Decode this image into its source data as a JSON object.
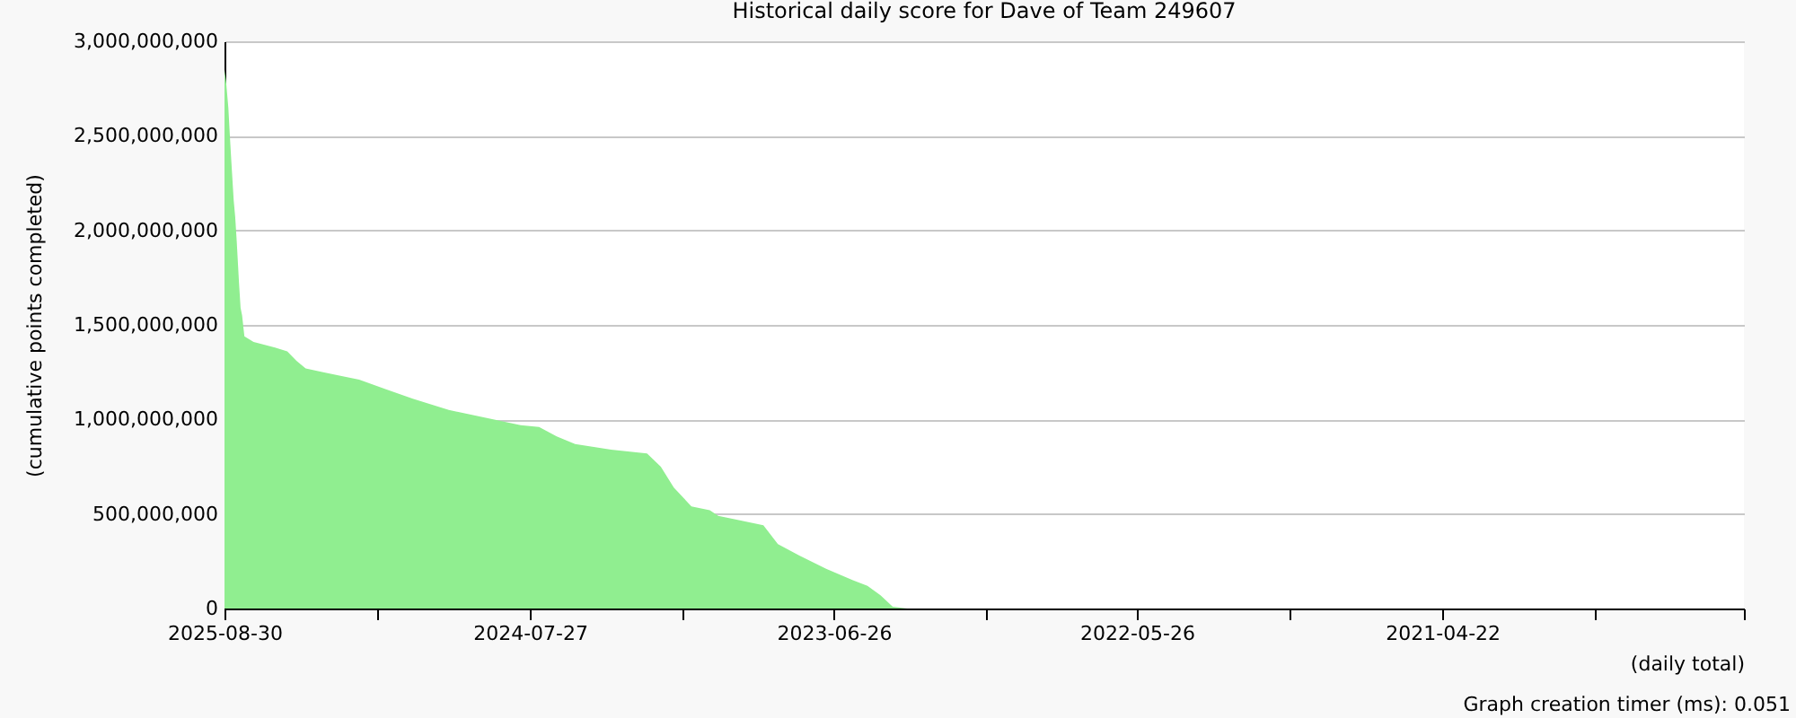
{
  "chart_data": {
    "type": "area",
    "title": "Historical daily score for Dave of Team 249607",
    "ylabel": "(cumulative points completed)",
    "xlabel": "(daily total)",
    "annotations": [
      "Graph creation timer (ms): 0.051"
    ],
    "x": [
      "2025-08-30",
      "2025-08-28",
      "2025-08-25",
      "2025-08-23",
      "2025-08-21",
      "2025-08-18",
      "2025-08-16",
      "2025-08-14",
      "2025-08-11",
      "2025-08-09",
      "2025-08-07",
      "2025-08-04",
      "2025-07-23",
      "2025-07-14",
      "2025-06-25",
      "2025-06-09",
      "2025-05-28",
      "2025-05-16",
      "2025-04-23",
      "2025-03-30",
      "2025-03-07",
      "2025-01-31",
      "2024-12-27",
      "2024-11-10",
      "2024-09-24",
      "2024-08-08",
      "2024-07-15",
      "2024-06-22",
      "2024-05-29",
      "2024-04-12",
      "2024-02-25",
      "2024-02-07",
      "2024-01-21",
      "2023-12-29",
      "2023-12-05",
      "2023-11-24",
      "2023-10-31",
      "2023-09-26",
      "2023-09-07",
      "2023-08-10",
      "2023-07-06",
      "2023-06-01",
      "2023-05-13",
      "2023-04-26",
      "2023-04-10",
      "2023-03-22",
      "2023-03-17",
      "2020-05-10"
    ],
    "series": [
      {
        "color": "#90ee90",
        "values": [
          2850000000,
          2790000000,
          2650000000,
          2500000000,
          2360000000,
          2160000000,
          2070000000,
          1940000000,
          1720000000,
          1590000000,
          1550000000,
          1440000000,
          1410000000,
          1400000000,
          1380000000,
          1360000000,
          1310000000,
          1270000000,
          1250000000,
          1230000000,
          1210000000,
          1160000000,
          1110000000,
          1050000000,
          1010000000,
          970000000,
          960000000,
          910000000,
          870000000,
          840000000,
          820000000,
          750000000,
          640000000,
          540000000,
          520000000,
          490000000,
          470000000,
          440000000,
          340000000,
          280000000,
          210000000,
          150000000,
          120000000,
          70000000,
          10000000,
          0,
          0,
          0
        ]
      }
    ],
    "xlim": [
      "2025-08-30",
      "2020-03-24"
    ],
    "xticks": [
      {
        "value": "2025-08-30",
        "label": "2025-08-30"
      },
      {
        "value": "2025-02-11",
        "label": null
      },
      {
        "value": "2024-07-27",
        "label": "2024-07-27"
      },
      {
        "value": "2024-01-10",
        "label": null
      },
      {
        "value": "2023-06-26",
        "label": "2023-06-26"
      },
      {
        "value": "2022-12-10",
        "label": null
      },
      {
        "value": "2022-05-26",
        "label": "2022-05-26"
      },
      {
        "value": "2021-11-08",
        "label": null
      },
      {
        "value": "2021-04-22",
        "label": "2021-04-22"
      },
      {
        "value": "2020-10-05",
        "label": null
      },
      {
        "value": "2020-03-24",
        "label": null
      }
    ],
    "ylim": [
      0,
      3000000000
    ],
    "yticks": [
      0,
      {
        "value": 500000000,
        "label": "500,000,000"
      },
      {
        "value": 1000000000,
        "label": "1,000,000,000"
      },
      {
        "value": 1500000000,
        "label": "1,500,000,000"
      },
      {
        "value": 2000000000,
        "label": "2,000,000,000"
      },
      {
        "value": 2500000000,
        "label": "2,500,000,000"
      },
      {
        "value": 3000000000,
        "label": "3,000,000,000"
      }
    ],
    "grid": "y"
  }
}
